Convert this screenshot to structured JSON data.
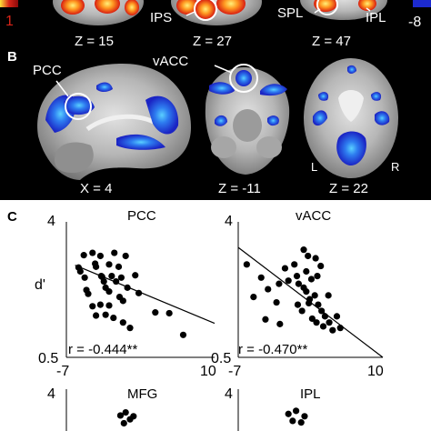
{
  "colorbar": {
    "pos_value": "1",
    "neg_value": "-8",
    "pos_color": "#c82018",
    "neg_color": "#1c2ad0"
  },
  "panel_a": {
    "slices": [
      {
        "label": "Z = 15"
      },
      {
        "label": "Z = 27",
        "region": "IPS"
      },
      {
        "label": "Z = 47",
        "regions": [
          "SPL",
          "IPL"
        ]
      }
    ]
  },
  "panel_b": {
    "letter": "B",
    "slices": [
      {
        "label": "X = 4",
        "region": "PCC"
      },
      {
        "label": "Z = -11",
        "region": "vACC"
      },
      {
        "label": "Z = 22",
        "side_left": "L",
        "side_right": "R"
      }
    ]
  },
  "panel_c": {
    "letter": "C",
    "ylabel": "d'",
    "x_min_label": "-7",
    "x_max_label": "10",
    "y_max_label": "4",
    "y_min_label": "0.5",
    "plots": [
      {
        "title": "PCC",
        "r_text": "r = -0.444**",
        "fit": [
          [
            -6.0,
            2.88
          ],
          [
            10.0,
            1.38
          ]
        ],
        "points": [
          [
            -5.4,
            2.72
          ],
          [
            -5.0,
            3.14
          ],
          [
            -4.0,
            3.2
          ],
          [
            -3.1,
            3.12
          ],
          [
            -2.1,
            2.9
          ],
          [
            -1.5,
            3.2
          ],
          [
            -0.2,
            3.12
          ],
          [
            -5.6,
            2.82
          ],
          [
            -4.9,
            2.56
          ],
          [
            -4.7,
            2.24
          ],
          [
            -3.6,
            2.84
          ],
          [
            -3.0,
            2.6
          ],
          [
            -2.7,
            2.46
          ],
          [
            -2.5,
            2.3
          ],
          [
            -2.1,
            2.2
          ],
          [
            -1.8,
            2.6
          ],
          [
            -1.3,
            2.46
          ],
          [
            -0.9,
            2.06
          ],
          [
            -0.5,
            1.96
          ],
          [
            0.0,
            2.3
          ],
          [
            0.9,
            2.62
          ],
          [
            1.3,
            2.16
          ],
          [
            -4.5,
            2.14
          ],
          [
            -4.0,
            1.82
          ],
          [
            -3.6,
            1.58
          ],
          [
            -3.1,
            1.86
          ],
          [
            -2.5,
            1.6
          ],
          [
            -2.1,
            1.84
          ],
          [
            -1.6,
            1.52
          ],
          [
            -0.5,
            1.4
          ],
          [
            0.3,
            1.26
          ],
          [
            -1.0,
            2.84
          ],
          [
            -0.7,
            2.56
          ],
          [
            3.2,
            1.66
          ],
          [
            6.4,
            1.08
          ],
          [
            -3.7,
            2.92
          ],
          [
            -2.9,
            2.58
          ],
          [
            4.8,
            1.64
          ]
        ]
      },
      {
        "title": "vACC",
        "r_text": "r = -0.470**",
        "fit": [
          [
            -7.0,
            3.34
          ],
          [
            10.0,
            0.5
          ]
        ],
        "points": [
          [
            0.7,
            3.28
          ],
          [
            1.2,
            3.12
          ],
          [
            2.1,
            3.06
          ],
          [
            2.7,
            2.86
          ],
          [
            -0.4,
            2.9
          ],
          [
            -0.1,
            2.6
          ],
          [
            1.0,
            2.72
          ],
          [
            1.6,
            2.52
          ],
          [
            2.3,
            2.6
          ],
          [
            -1.5,
            2.8
          ],
          [
            -1.1,
            2.48
          ],
          [
            0.1,
            2.4
          ],
          [
            1.0,
            2.2
          ],
          [
            1.4,
            2.0
          ],
          [
            2.0,
            2.1
          ],
          [
            2.4,
            1.86
          ],
          [
            2.8,
            1.7
          ],
          [
            3.2,
            1.56
          ],
          [
            3.7,
            1.4
          ],
          [
            4.6,
            1.56
          ],
          [
            5.0,
            1.26
          ],
          [
            -5.2,
            2.06
          ],
          [
            -3.8,
            1.48
          ],
          [
            -2.5,
            1.92
          ],
          [
            0.0,
            1.86
          ],
          [
            0.5,
            1.7
          ],
          [
            1.7,
            1.5
          ],
          [
            2.2,
            1.4
          ],
          [
            3.0,
            1.3
          ],
          [
            4.1,
            1.2
          ],
          [
            -6.0,
            2.9
          ],
          [
            -4.3,
            2.56
          ],
          [
            -3.5,
            2.26
          ],
          [
            -2.2,
            2.4
          ],
          [
            0.7,
            2.3
          ],
          [
            1.3,
            1.9
          ],
          [
            3.6,
            2.1
          ],
          [
            -2.1,
            1.36
          ]
        ]
      },
      {
        "title": "MFG",
        "points": [
          [
            -0.8,
            3.32
          ],
          [
            -0.2,
            3.4
          ],
          [
            0.3,
            3.22
          ],
          [
            0.7,
            3.3
          ],
          [
            -0.4,
            3.12
          ]
        ]
      },
      {
        "title": "IPL",
        "points": [
          [
            -1.1,
            3.36
          ],
          [
            -0.6,
            3.18
          ],
          [
            -0.2,
            3.44
          ],
          [
            0.4,
            3.14
          ],
          [
            0.8,
            3.3
          ]
        ]
      }
    ]
  }
}
